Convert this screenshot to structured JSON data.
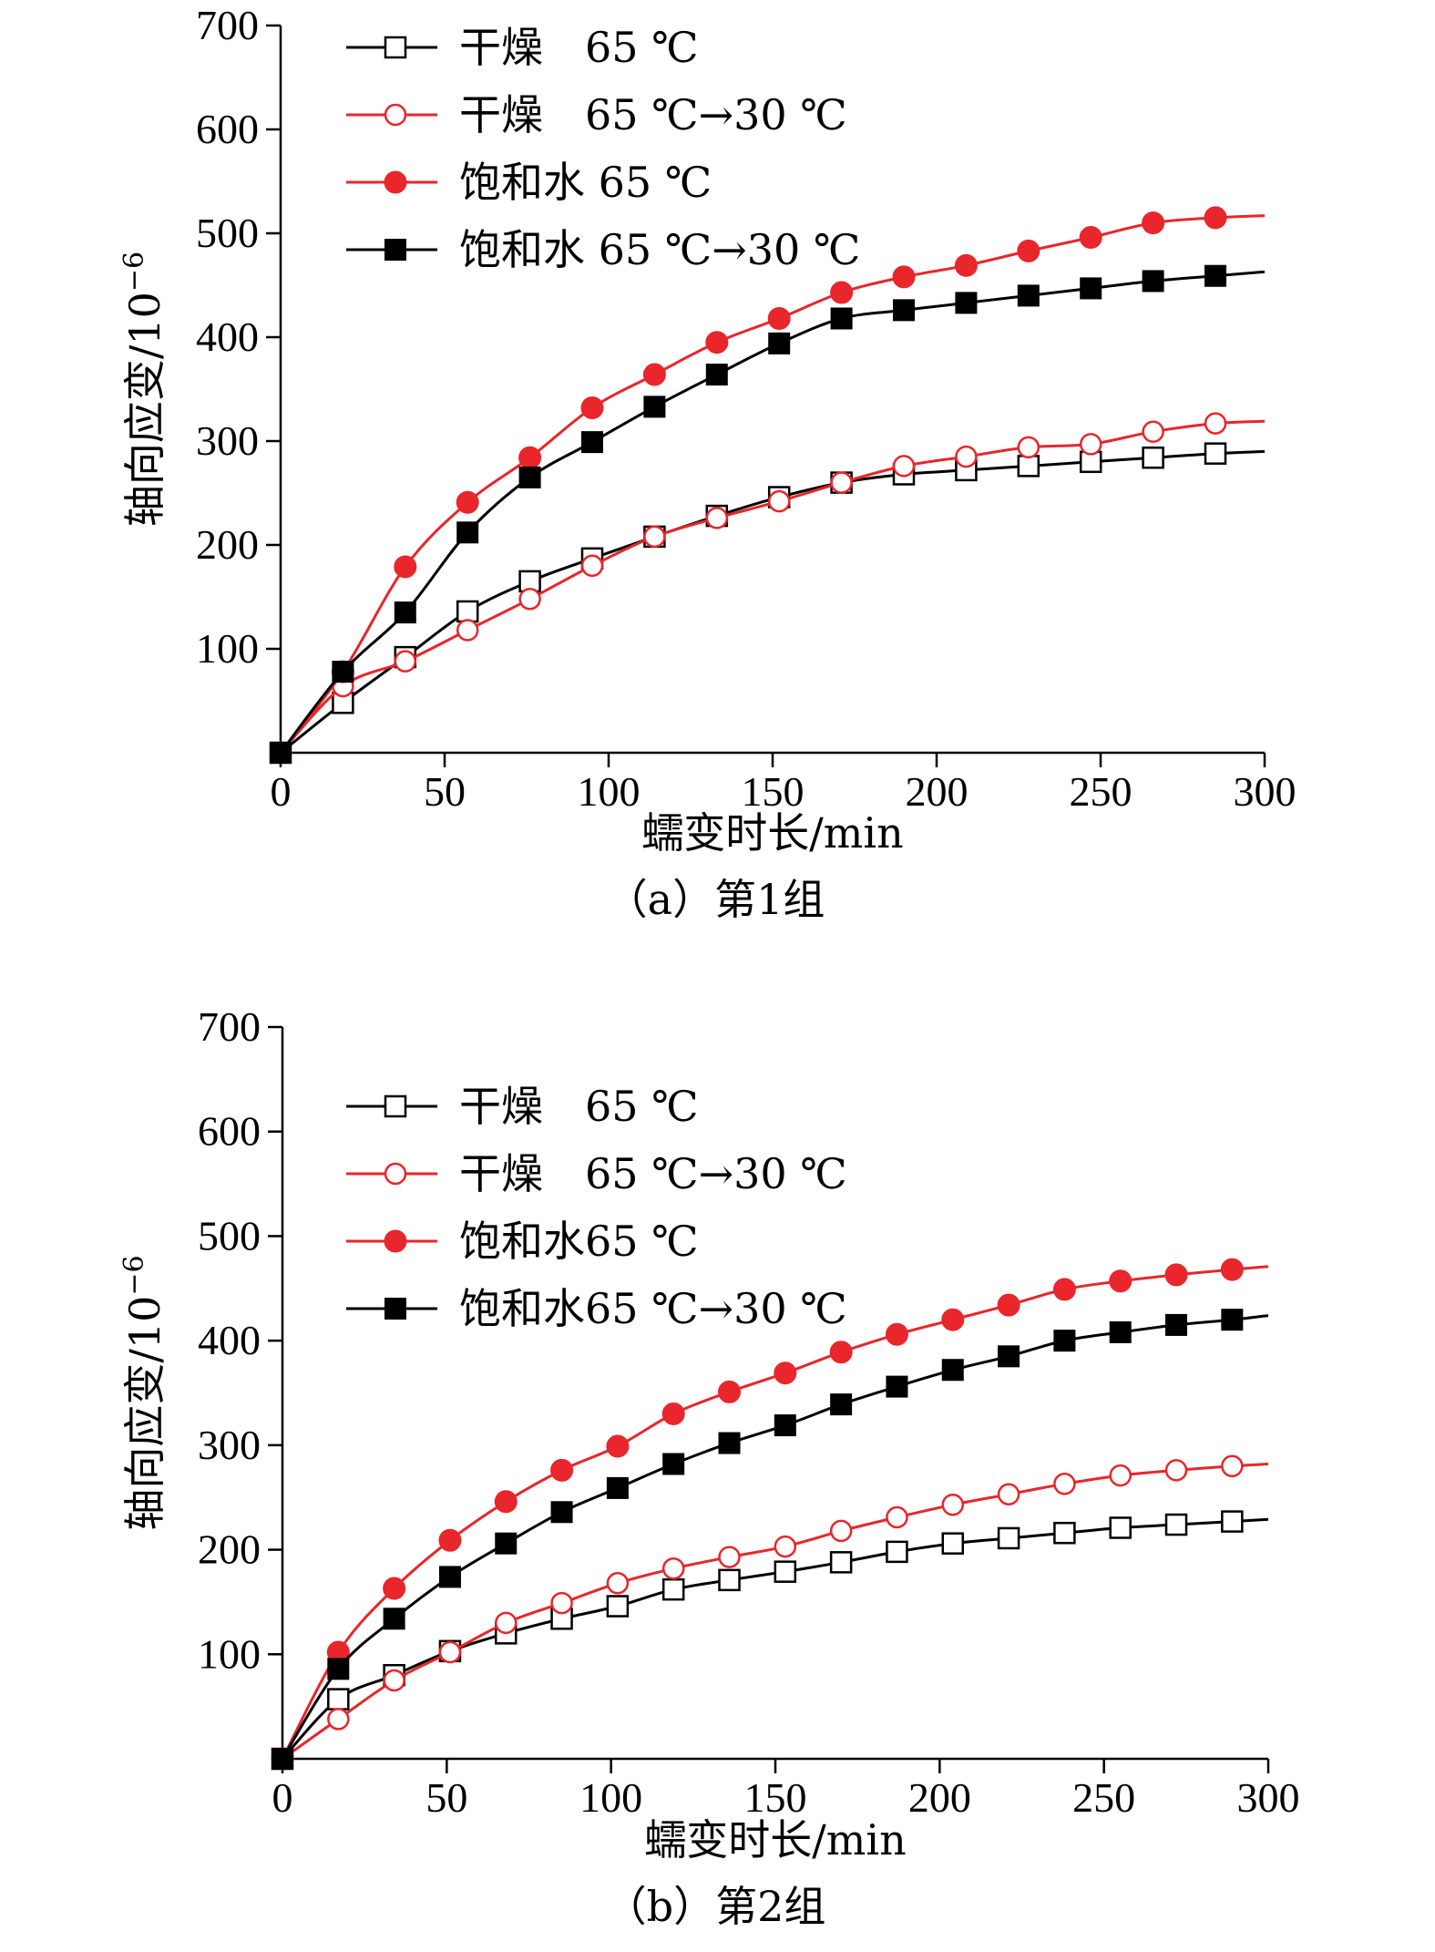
{
  "chart_data": [
    {
      "type": "line",
      "caption": "（a）第1组",
      "xlabel": "蠕变时长/min",
      "ylabel": "轴向应变/10",
      "ylabel_exponent": "−6",
      "xlim": [
        0,
        300
      ],
      "ylim": [
        0,
        700
      ],
      "xticks": [
        "0",
        "50",
        "100",
        "150",
        "200",
        "250",
        "300"
      ],
      "yticks": [
        "100",
        "200",
        "300",
        "400",
        "500",
        "600",
        "700"
      ],
      "grid": false,
      "legend_position": "top-left",
      "series": [
        {
          "name": "干燥　65 ℃",
          "color": "#000000",
          "marker": "square-open",
          "x": [
            0,
            19,
            38,
            57,
            76,
            95,
            114,
            133,
            152,
            171,
            190,
            209,
            228,
            247,
            266,
            285,
            300
          ],
          "y": [
            0,
            48,
            92,
            136,
            165,
            187,
            208,
            228,
            246,
            260,
            268,
            272,
            276,
            280,
            284,
            288,
            290
          ],
          "marker_count": 16
        },
        {
          "name": "干燥　65 ℃→30 ℃",
          "color": "#e8262b",
          "marker": "circle-open",
          "x": [
            0,
            19,
            38,
            57,
            76,
            95,
            114,
            133,
            152,
            171,
            190,
            209,
            228,
            247,
            266,
            285,
            300
          ],
          "y": [
            0,
            64,
            88,
            118,
            148,
            180,
            208,
            226,
            242,
            260,
            276,
            285,
            294,
            297,
            309,
            317,
            319
          ],
          "marker_count": 16
        },
        {
          "name": "饱和水 65 ℃",
          "color": "#e8262b",
          "marker": "circle-filled",
          "x": [
            0,
            19,
            38,
            57,
            76,
            95,
            114,
            133,
            152,
            171,
            190,
            209,
            228,
            247,
            266,
            285,
            300
          ],
          "y": [
            0,
            78,
            179,
            241,
            284,
            332,
            364,
            395,
            418,
            443,
            458,
            469,
            483,
            496,
            510,
            515,
            517
          ],
          "marker_count": 16
        },
        {
          "name": "饱和水 65 ℃→30 ℃",
          "color": "#000000",
          "marker": "square-filled",
          "x": [
            0,
            19,
            38,
            57,
            76,
            95,
            114,
            133,
            152,
            171,
            190,
            209,
            228,
            247,
            266,
            285,
            300
          ],
          "y": [
            0,
            78,
            135,
            212,
            265,
            299,
            333,
            364,
            394,
            418,
            426,
            433,
            440,
            447,
            454,
            459,
            463
          ],
          "marker_count": 16
        }
      ]
    },
    {
      "type": "line",
      "caption": "（b）第2组",
      "xlabel": "蠕变时长/min",
      "ylabel": "轴向应变/10",
      "ylabel_exponent": "−6",
      "xlim": [
        0,
        300
      ],
      "ylim": [
        0,
        700
      ],
      "xticks": [
        "0",
        "50",
        "100",
        "150",
        "200",
        "250",
        "300"
      ],
      "yticks": [
        "100",
        "200",
        "300",
        "400",
        "500",
        "600",
        "700"
      ],
      "grid": false,
      "legend_position": "top-left",
      "series": [
        {
          "name": "干燥　65 ℃",
          "color": "#000000",
          "marker": "square-open",
          "x": [
            0,
            17,
            34,
            51,
            68,
            85,
            102,
            119,
            136,
            153,
            170,
            187,
            204,
            221,
            238,
            255,
            272,
            289,
            300
          ],
          "y": [
            0,
            57,
            80,
            103,
            120,
            134,
            146,
            162,
            171,
            179,
            188,
            198,
            206,
            211,
            216,
            221,
            224,
            227,
            229
          ],
          "marker_count": 18
        },
        {
          "name": "干燥　65 ℃→30 ℃",
          "color": "#e8262b",
          "marker": "circle-open",
          "x": [
            0,
            17,
            34,
            51,
            68,
            85,
            102,
            119,
            136,
            153,
            170,
            187,
            204,
            221,
            238,
            255,
            272,
            289,
            300
          ],
          "y": [
            0,
            38,
            75,
            102,
            130,
            149,
            168,
            182,
            193,
            203,
            218,
            231,
            243,
            253,
            263,
            271,
            276,
            280,
            282
          ],
          "marker_count": 18
        },
        {
          "name": "饱和水65 ℃",
          "color": "#e8262b",
          "marker": "circle-filled",
          "x": [
            0,
            17,
            34,
            51,
            68,
            85,
            102,
            119,
            136,
            153,
            170,
            187,
            204,
            221,
            238,
            255,
            272,
            289,
            300
          ],
          "y": [
            0,
            102,
            163,
            209,
            246,
            276,
            299,
            330,
            351,
            369,
            389,
            406,
            420,
            434,
            449,
            457,
            463,
            468,
            471
          ],
          "marker_count": 18
        },
        {
          "name": "饱和水65 ℃→30 ℃",
          "color": "#000000",
          "marker": "square-filled",
          "x": [
            0,
            17,
            34,
            51,
            68,
            85,
            102,
            119,
            136,
            153,
            170,
            187,
            204,
            221,
            238,
            255,
            272,
            289,
            300
          ],
          "y": [
            0,
            86,
            134,
            174,
            206,
            236,
            259,
            282,
            302,
            319,
            339,
            356,
            372,
            385,
            400,
            408,
            415,
            420,
            424
          ],
          "marker_count": 18
        }
      ]
    }
  ]
}
